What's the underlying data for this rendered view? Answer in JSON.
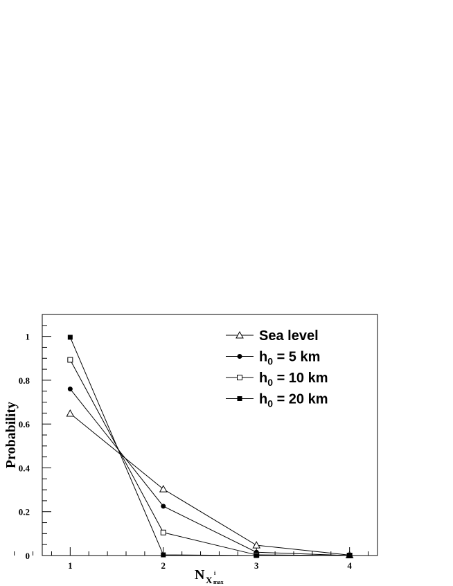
{
  "chart_data": {
    "type": "line",
    "x": [
      1,
      2,
      3,
      4
    ],
    "xticks": [
      "1",
      "2",
      "3",
      "4"
    ],
    "yticks": [
      "0",
      "0.2",
      "0.4",
      "0.6",
      "0.8",
      "1"
    ],
    "xlim": [
      0.7,
      4.3
    ],
    "ylim": [
      0,
      1.1
    ],
    "xlabel": "N",
    "xlabel_sub": "X",
    "xlabel_sub_sup": "i",
    "xlabel_sub_sub": "max",
    "ylabel": "Probability",
    "grid": false,
    "legend_position": "top-right",
    "series": [
      {
        "name": "Sea level",
        "name_main": "Sea level",
        "name_sub": "",
        "name_rest": "",
        "marker": "open-triangle",
        "values": [
          0.648,
          0.303,
          0.047,
          0.002
        ]
      },
      {
        "name": "h0 = 5 km",
        "name_main": "h",
        "name_sub": "0",
        "name_rest": " = 5 km",
        "marker": "filled-circle",
        "values": [
          0.76,
          0.225,
          0.015,
          0.0
        ]
      },
      {
        "name": "h0 = 10 km",
        "name_main": "h",
        "name_sub": "0",
        "name_rest": " = 10 km",
        "marker": "open-square",
        "values": [
          0.893,
          0.105,
          0.003,
          0.0
        ]
      },
      {
        "name": "h0 = 20 km",
        "name_main": "h",
        "name_sub": "0",
        "name_rest": " = 20 km",
        "marker": "filled-square",
        "values": [
          0.996,
          0.003,
          0.0,
          0.0
        ]
      }
    ]
  }
}
